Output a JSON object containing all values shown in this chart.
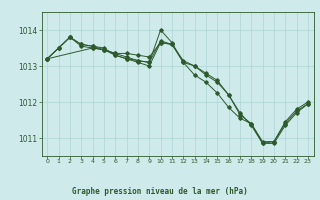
{
  "title": "Graphe pression niveau de la mer (hPa)",
  "background_color": "#ceeaea",
  "grid_color": "#aed4d4",
  "line_color": "#2d5a2d",
  "xlim": [
    -0.5,
    23.5
  ],
  "ylim": [
    1010.5,
    1014.5
  ],
  "yticks": [
    1011,
    1012,
    1013,
    1014
  ],
  "xticks": [
    0,
    1,
    2,
    3,
    4,
    5,
    6,
    7,
    8,
    9,
    10,
    11,
    12,
    13,
    14,
    15,
    16,
    17,
    18,
    19,
    20,
    21,
    22,
    23
  ],
  "series": [
    {
      "x": [
        0,
        1,
        2,
        3,
        4,
        5,
        6,
        7,
        8,
        9,
        10,
        11,
        12,
        13,
        14,
        15,
        16,
        17,
        18,
        19,
        20,
        21,
        22,
        23
      ],
      "y": [
        1013.2,
        1013.5,
        1013.8,
        1013.6,
        1013.55,
        1013.5,
        1013.3,
        1013.2,
        1013.15,
        1013.1,
        1014.0,
        1013.65,
        1013.1,
        1012.75,
        1012.55,
        1012.25,
        1011.85,
        1011.55,
        1011.4,
        1010.9,
        1010.9,
        1011.45,
        1011.8,
        1012.0
      ]
    },
    {
      "x": [
        0,
        1,
        2,
        3,
        4,
        5,
        6,
        7,
        8,
        9,
        10,
        11,
        12,
        13,
        14,
        15,
        16,
        17,
        18,
        19,
        20,
        21,
        22,
        23
      ],
      "y": [
        1013.2,
        1013.5,
        1013.8,
        1013.55,
        1013.5,
        1013.45,
        1013.3,
        1013.2,
        1013.1,
        1013.0,
        1013.65,
        1013.6,
        1013.15,
        1013.0,
        1012.8,
        1012.6,
        1012.2,
        1011.7,
        1011.35,
        1010.85,
        1010.9,
        1011.4,
        1011.75,
        1011.95
      ]
    },
    {
      "x": [
        0,
        4,
        5,
        6,
        7,
        8,
        9,
        10,
        11,
        12,
        13,
        14,
        15,
        16,
        17,
        18,
        19,
        20,
        21,
        22,
        23
      ],
      "y": [
        1013.2,
        1013.5,
        1013.45,
        1013.35,
        1013.25,
        1013.15,
        1013.1,
        1013.7,
        1013.6,
        1013.1,
        1013.0,
        1012.75,
        1012.55,
        1012.2,
        1011.65,
        1011.4,
        1010.85,
        1010.85,
        1011.35,
        1011.7,
        1011.95
      ]
    },
    {
      "x": [
        0,
        1,
        2,
        3,
        4,
        5,
        6,
        7,
        8,
        9,
        10,
        11
      ],
      "y": [
        1013.2,
        1013.5,
        1013.8,
        1013.6,
        1013.55,
        1013.45,
        1013.35,
        1013.35,
        1013.3,
        1013.25,
        1013.65,
        1013.6
      ]
    }
  ]
}
